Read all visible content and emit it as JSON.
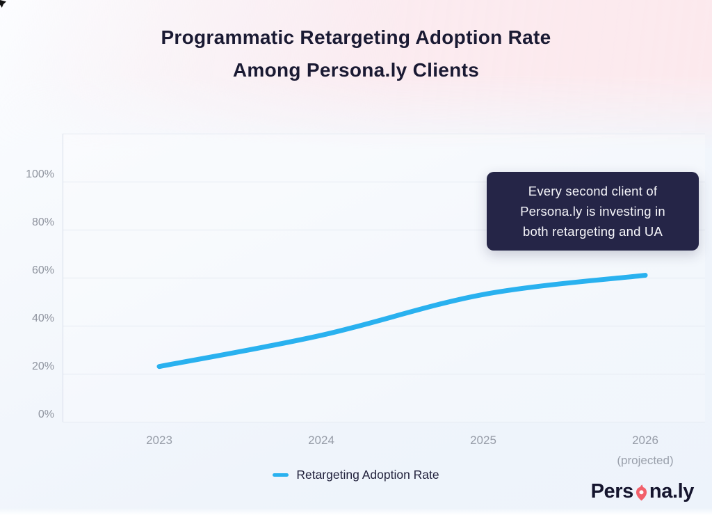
{
  "title": {
    "line1": "Programmatic Retargeting Adoption Rate",
    "line2": "Among Persona.ly Clients"
  },
  "annotation": {
    "lines": [
      "Every second client of",
      "Persona.ly is investing in",
      "both retargeting and UA"
    ]
  },
  "chart_data": {
    "type": "line",
    "categories": [
      "2023",
      "2024",
      "2025",
      "2026"
    ],
    "tick_notes": [
      "",
      "",
      "",
      "(projected)"
    ],
    "series": [
      {
        "name": "Retargeting Adoption Rate",
        "values": [
          23,
          36,
          53,
          61
        ],
        "color": "#29b1ef"
      }
    ],
    "title": "Programmatic Retargeting Adoption Rate Among Persona.ly Clients",
    "xlabel": "",
    "ylabel": "",
    "ylim": [
      0,
      120
    ],
    "yticks": [
      "0%",
      "20%",
      "40%",
      "60%",
      "80%",
      "100%"
    ],
    "grid": true,
    "legend_position": "bottom"
  },
  "colors": {
    "line": "#29b1ef",
    "annotation_bg": "#252547",
    "title_text": "#1a1a33",
    "tick_text": "#8e939e",
    "gridline": "#e5eaf2",
    "pink": "#fce9ed",
    "logo_pin": "#f2606b"
  },
  "logo": {
    "prefix": "Pers",
    "suffix": "na.ly"
  }
}
